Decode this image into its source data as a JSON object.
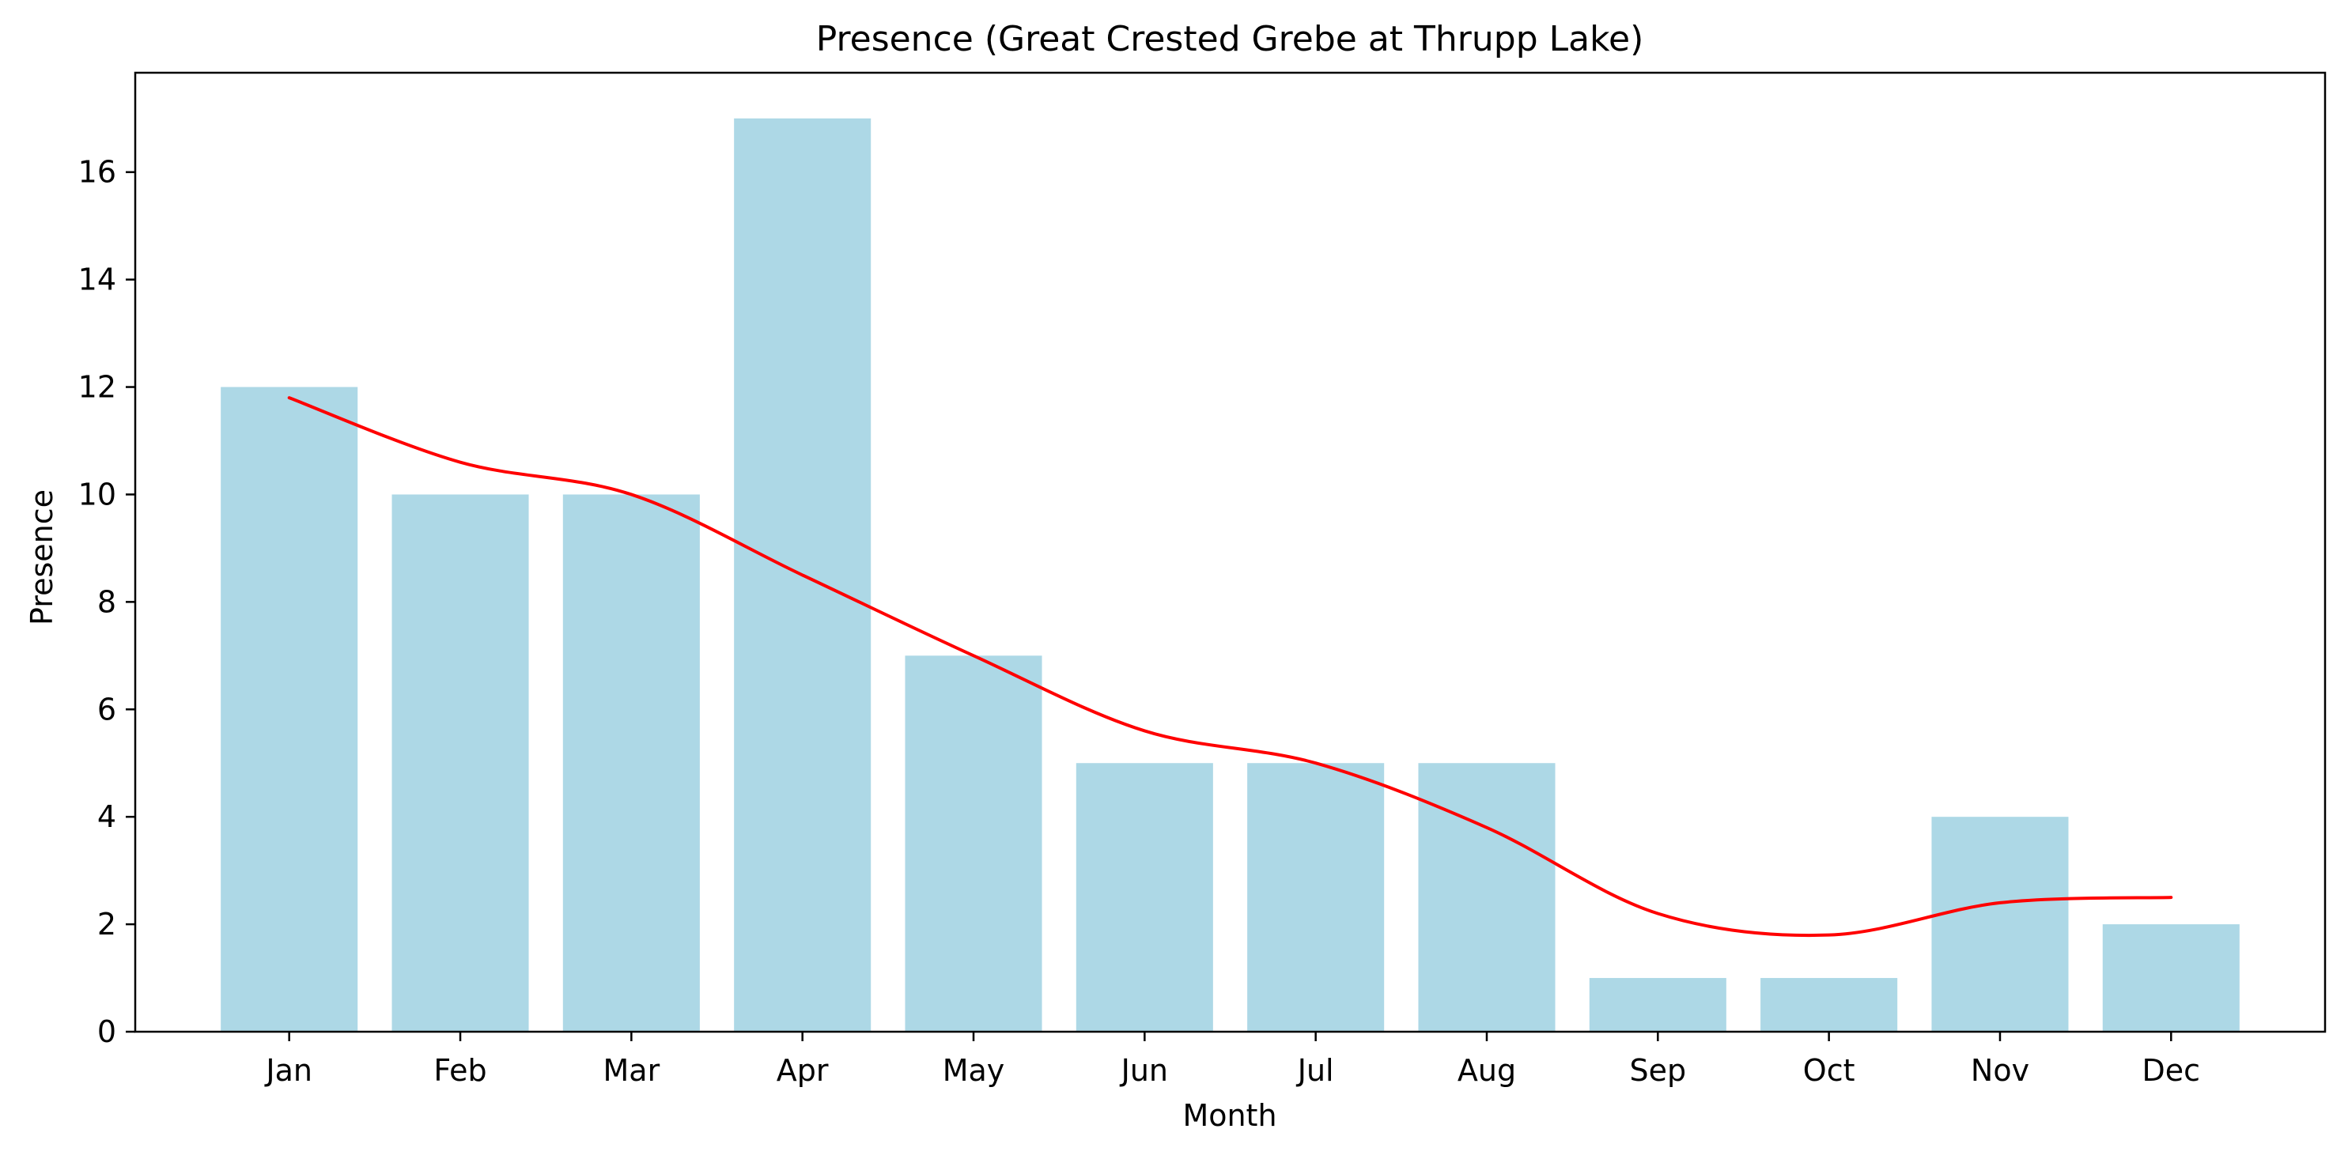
{
  "chart_data": {
    "type": "bar",
    "title": "Presence (Great Crested Grebe at Thrupp Lake)",
    "xlabel": "Month",
    "ylabel": "Presence",
    "categories": [
      "Jan",
      "Feb",
      "Mar",
      "Apr",
      "May",
      "Jun",
      "Jul",
      "Aug",
      "Sep",
      "Oct",
      "Nov",
      "Dec"
    ],
    "values": [
      12,
      10,
      10,
      17,
      7,
      5,
      5,
      5,
      1,
      1,
      4,
      2
    ],
    "trend_line": [
      11.8,
      10.6,
      10.0,
      8.5,
      7.0,
      5.6,
      5.0,
      3.8,
      2.2,
      1.8,
      2.4,
      2.5
    ],
    "ylim": [
      0,
      17.85
    ],
    "yticks": [
      0,
      2,
      4,
      6,
      8,
      10,
      12,
      14,
      16
    ],
    "grid": false,
    "legend": "none",
    "colors": {
      "bar": "#add8e6",
      "trend": "#ff0000",
      "axis": "#000000"
    }
  }
}
